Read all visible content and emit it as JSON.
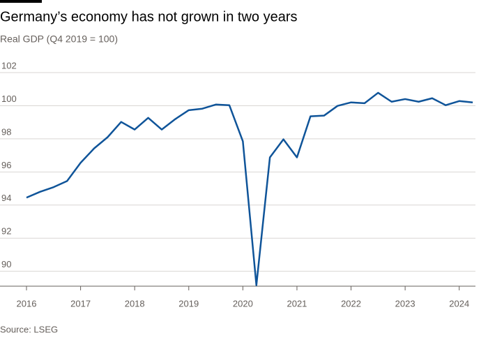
{
  "chart_data": {
    "type": "line",
    "title": "Germany’s economy has not grown in two years",
    "subtitle": "Real GDP (Q4 2019 = 100)",
    "source": "Source: LSEG",
    "x": [
      2016,
      2016.25,
      2016.5,
      2016.75,
      2017,
      2017.25,
      2017.5,
      2017.75,
      2018,
      2018.25,
      2018.5,
      2018.75,
      2019,
      2019.25,
      2019.5,
      2019.75,
      2020,
      2020.25,
      2020.5,
      2020.75,
      2021,
      2021.25,
      2021.5,
      2021.75,
      2022,
      2022.25,
      2022.5,
      2022.75,
      2023,
      2023.25,
      2023.5,
      2023.75,
      2024,
      2024.25
    ],
    "series": [
      {
        "name": "Real GDP",
        "color": "#0f5499",
        "values": [
          94.45,
          94.8,
          95.08,
          95.45,
          96.55,
          97.42,
          98.1,
          99.02,
          98.56,
          99.27,
          98.56,
          99.19,
          99.73,
          99.82,
          100.07,
          100.03,
          97.85,
          89.16,
          96.88,
          97.97,
          96.88,
          99.36,
          99.4,
          99.99,
          100.2,
          100.15,
          100.78,
          100.24,
          100.4,
          100.24,
          100.45,
          100.03,
          100.28,
          100.2
        ]
      }
    ],
    "xlim": [
      2016,
      2024.3
    ],
    "xticks": [
      2016,
      2017,
      2018,
      2019,
      2020,
      2021,
      2022,
      2023,
      2024
    ],
    "ylim": [
      89.1,
      102
    ],
    "yticks": [
      90,
      92,
      94,
      96,
      98,
      100,
      102
    ],
    "grid": true
  }
}
